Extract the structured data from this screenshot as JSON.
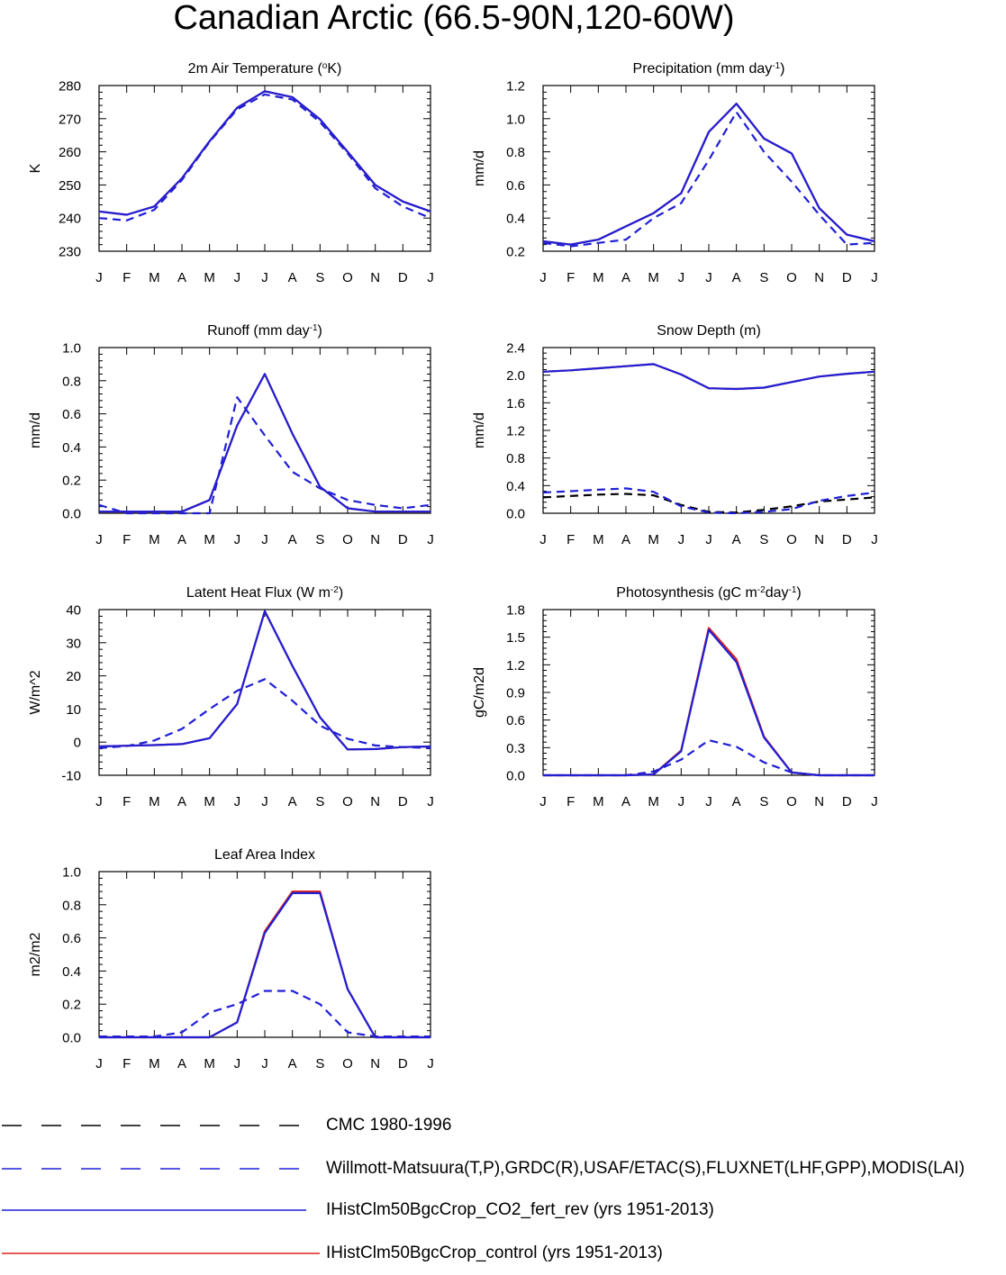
{
  "title": "Canadian Arctic (66.5-90N,120-60W)",
  "colors": {
    "obs_cmc": "#000000",
    "obs_other": "#1f1fd6",
    "co2_fert_rev": "#1f1fd6",
    "control": "#e0241b"
  },
  "legend": [
    {
      "label": "CMC 1980-1996",
      "style": "dashed",
      "color": "#000000"
    },
    {
      "label": "Willmott-Matsuura(T,P),GRDC(R),USAF/ETAC(S),FLUXNET(LHF,GPP),MODIS(LAI)",
      "style": "dashed",
      "color": "#1f1fd6"
    },
    {
      "label": "IHistClm50BgcCrop_CO2_fert_rev (yrs 1951-2013)",
      "style": "solid",
      "color": "#1f1fd6"
    },
    {
      "label": "IHistClm50BgcCrop_control (yrs 1951-2013)",
      "style": "solid",
      "color": "#e0241b"
    }
  ],
  "chart_data": [
    {
      "type": "line",
      "title": "2m Air Temperature (oK)",
      "title_parts": [
        "2m Air Temperature (",
        "o",
        "K)"
      ],
      "title_style": [
        "normal",
        "sup",
        "normal"
      ],
      "ylabel": "K",
      "x": [
        "J",
        "F",
        "M",
        "A",
        "M",
        "J",
        "J",
        "A",
        "S",
        "O",
        "N",
        "D",
        "J"
      ],
      "ylim": [
        230,
        280
      ],
      "yticks": [
        230,
        240,
        250,
        260,
        270,
        280
      ],
      "yticklabels": [
        "230",
        "240",
        "250",
        "260",
        "270",
        "280"
      ],
      "series": [
        {
          "name": "Willmott-Matsuura",
          "color": "#1f1fd6",
          "dashed": true,
          "values": [
            240,
            239.3,
            242.5,
            251.5,
            263,
            272.8,
            277.3,
            275.8,
            269,
            259.5,
            249,
            243.5,
            240
          ]
        },
        {
          "name": "IHistClm50BgcCrop_control",
          "color": "#e0241b",
          "dashed": false,
          "values": [
            242,
            241,
            243.5,
            252,
            263.2,
            273.3,
            278.3,
            276.5,
            269.8,
            260,
            250,
            245,
            242
          ]
        },
        {
          "name": "IHistClm50BgcCrop_CO2_fert_rev",
          "color": "#1f1fd6",
          "dashed": false,
          "values": [
            242,
            241,
            243.5,
            252,
            263.2,
            273.3,
            278.3,
            276.5,
            269.8,
            260,
            250,
            245,
            242
          ]
        }
      ]
    },
    {
      "type": "line",
      "title": "Precipitation (mm day-1)",
      "title_parts": [
        "Precipitation (mm day",
        "-1",
        ")"
      ],
      "title_style": [
        "normal",
        "sup",
        "normal"
      ],
      "ylabel": "mm/d",
      "x": [
        "J",
        "F",
        "M",
        "A",
        "M",
        "J",
        "J",
        "A",
        "S",
        "O",
        "N",
        "D",
        "J"
      ],
      "ylim": [
        0.2,
        1.2
      ],
      "yticks": [
        0.2,
        0.4,
        0.6,
        0.8,
        1.0,
        1.2
      ],
      "yticklabels": [
        "0.2",
        "0.4",
        "0.6",
        "0.8",
        "1.0",
        "1.2"
      ],
      "series": [
        {
          "name": "Willmott-Matsuura",
          "color": "#1f1fd6",
          "dashed": true,
          "values": [
            0.25,
            0.23,
            0.25,
            0.27,
            0.4,
            0.49,
            0.75,
            1.04,
            0.8,
            0.62,
            0.42,
            0.24,
            0.25
          ]
        },
        {
          "name": "IHistClm50BgcCrop_control",
          "color": "#e0241b",
          "dashed": false,
          "values": [
            0.26,
            0.24,
            0.27,
            0.35,
            0.43,
            0.55,
            0.92,
            1.09,
            0.88,
            0.79,
            0.46,
            0.3,
            0.26
          ]
        },
        {
          "name": "IHistClm50BgcCrop_CO2_fert_rev",
          "color": "#1f1fd6",
          "dashed": false,
          "values": [
            0.26,
            0.24,
            0.27,
            0.35,
            0.43,
            0.55,
            0.92,
            1.09,
            0.88,
            0.79,
            0.46,
            0.3,
            0.26
          ]
        }
      ]
    },
    {
      "type": "line",
      "title": "Runoff (mm day-1)",
      "title_parts": [
        "Runoff (mm day",
        "-1",
        ")"
      ],
      "title_style": [
        "normal",
        "sup",
        "normal"
      ],
      "ylabel": "mm/d",
      "x": [
        "J",
        "F",
        "M",
        "A",
        "M",
        "J",
        "J",
        "A",
        "S",
        "O",
        "N",
        "D",
        "J"
      ],
      "ylim": [
        0,
        1.0
      ],
      "yticks": [
        0,
        0.2,
        0.4,
        0.6,
        0.8,
        1.0
      ],
      "yticklabels": [
        "0.0",
        "0.2",
        "0.4",
        "0.6",
        "0.8",
        "1.0"
      ],
      "series": [
        {
          "name": "GRDC",
          "color": "#1f1fd6",
          "dashed": true,
          "values": [
            0.05,
            0.0,
            0.0,
            0.0,
            0.0,
            0.7,
            0.47,
            0.25,
            0.15,
            0.08,
            0.05,
            0.03,
            0.05
          ]
        },
        {
          "name": "IHistClm50BgcCrop_control",
          "color": "#e0241b",
          "dashed": false,
          "values": [
            0.01,
            0.01,
            0.01,
            0.01,
            0.08,
            0.53,
            0.84,
            0.48,
            0.16,
            0.03,
            0.01,
            0.01,
            0.01
          ]
        },
        {
          "name": "IHistClm50BgcCrop_CO2_fert_rev",
          "color": "#1f1fd6",
          "dashed": false,
          "values": [
            0.01,
            0.01,
            0.01,
            0.01,
            0.08,
            0.53,
            0.84,
            0.48,
            0.16,
            0.03,
            0.01,
            0.01,
            0.01
          ]
        }
      ]
    },
    {
      "type": "line",
      "title": "Snow Depth (m)",
      "title_parts": [
        "Snow Depth (m)"
      ],
      "title_style": [
        "normal"
      ],
      "ylabel": "mm/d",
      "x": [
        "J",
        "F",
        "M",
        "A",
        "M",
        "J",
        "J",
        "A",
        "S",
        "O",
        "N",
        "D",
        "J"
      ],
      "ylim": [
        0,
        2.4
      ],
      "yticks": [
        0,
        0.4,
        0.8,
        1.2,
        1.6,
        2.0,
        2.4
      ],
      "yticklabels": [
        "0.0",
        "0.4",
        "0.8",
        "1.2",
        "1.6",
        "2.0",
        "2.4"
      ],
      "series": [
        {
          "name": "CMC 1980-1996",
          "color": "#000000",
          "dashed": true,
          "values": [
            0.23,
            0.25,
            0.27,
            0.28,
            0.26,
            0.12,
            0.02,
            0.01,
            0.05,
            0.1,
            0.17,
            0.2,
            0.23
          ]
        },
        {
          "name": "USAF/ETAC",
          "color": "#1f1fd6",
          "dashed": true,
          "values": [
            0.3,
            0.32,
            0.34,
            0.36,
            0.31,
            0.1,
            0.01,
            0.0,
            0.02,
            0.06,
            0.18,
            0.25,
            0.3
          ]
        },
        {
          "name": "IHistClm50BgcCrop_control",
          "color": "#e0241b",
          "dashed": false,
          "values": [
            2.05,
            2.07,
            2.1,
            2.13,
            2.16,
            2.01,
            1.81,
            1.8,
            1.82,
            1.9,
            1.98,
            2.02,
            2.05
          ]
        },
        {
          "name": "IHistClm50BgcCrop_CO2_fert_rev",
          "color": "#1f1fd6",
          "dashed": false,
          "values": [
            2.05,
            2.07,
            2.1,
            2.13,
            2.16,
            2.01,
            1.81,
            1.8,
            1.82,
            1.9,
            1.98,
            2.02,
            2.05
          ]
        }
      ]
    },
    {
      "type": "line",
      "title": "Latent Heat Flux (W m-2)",
      "title_parts": [
        "Latent Heat Flux (W m",
        "-2",
        ")"
      ],
      "title_style": [
        "normal",
        "sup",
        "normal"
      ],
      "ylabel": "W/m^2",
      "x": [
        "J",
        "F",
        "M",
        "A",
        "M",
        "J",
        "J",
        "A",
        "S",
        "O",
        "N",
        "D",
        "J"
      ],
      "ylim": [
        -10,
        40
      ],
      "yticks": [
        -10,
        0,
        10,
        20,
        30,
        40
      ],
      "yticklabels": [
        "-10",
        "0",
        "10",
        "20",
        "30",
        "40"
      ],
      "series": [
        {
          "name": "FLUXNET",
          "color": "#1f1fd6",
          "dashed": true,
          "values": [
            -1.8,
            -1.2,
            0.5,
            4,
            10,
            15.5,
            19,
            12.5,
            5,
            1,
            -1,
            -1.5,
            -1.8
          ]
        },
        {
          "name": "IHistClm50BgcCrop_control",
          "color": "#e0241b",
          "dashed": false,
          "values": [
            -1.3,
            -1.1,
            -0.9,
            -0.6,
            1.2,
            11.5,
            39.5,
            23,
            7.5,
            -2.2,
            -2.1,
            -1.5,
            -1.3
          ]
        },
        {
          "name": "IHistClm50BgcCrop_CO2_fert_rev",
          "color": "#1f1fd6",
          "dashed": false,
          "values": [
            -1.3,
            -1.1,
            -0.9,
            -0.6,
            1.2,
            11.5,
            39.5,
            23,
            7.5,
            -2.2,
            -2.1,
            -1.5,
            -1.3
          ]
        }
      ]
    },
    {
      "type": "line",
      "title": "Photosynthesis (gC m-2day-1)",
      "title_parts": [
        "Photosynthesis (gC m",
        "-2",
        "day",
        "-1",
        ")"
      ],
      "title_style": [
        "normal",
        "sup",
        "normal",
        "sup",
        "normal"
      ],
      "ylabel": "gC/m2d",
      "x": [
        "J",
        "F",
        "M",
        "A",
        "M",
        "J",
        "J",
        "A",
        "S",
        "O",
        "N",
        "D",
        "J"
      ],
      "ylim": [
        0,
        1.8
      ],
      "yticks": [
        0,
        0.3,
        0.6,
        0.9,
        1.2,
        1.5,
        1.8
      ],
      "yticklabels": [
        "0.0",
        "0.3",
        "0.6",
        "0.9",
        "1.2",
        "1.5",
        "1.8"
      ],
      "series": [
        {
          "name": "FLUXNET",
          "color": "#1f1fd6",
          "dashed": true,
          "values": [
            0,
            0,
            0,
            0,
            0.04,
            0.17,
            0.38,
            0.31,
            0.14,
            0.03,
            0,
            0,
            0
          ]
        },
        {
          "name": "IHistClm50BgcCrop_control",
          "color": "#e0241b",
          "dashed": false,
          "values": [
            0,
            0,
            0,
            0,
            0.01,
            0.27,
            1.6,
            1.26,
            0.42,
            0.03,
            0,
            0,
            0
          ]
        },
        {
          "name": "IHistClm50BgcCrop_CO2_fert_rev",
          "color": "#1f1fd6",
          "dashed": false,
          "values": [
            0,
            0,
            0,
            0,
            0.01,
            0.26,
            1.58,
            1.23,
            0.41,
            0.03,
            0,
            0,
            0
          ]
        }
      ]
    },
    {
      "type": "line",
      "title": "Leaf Area Index",
      "title_parts": [
        "Leaf Area Index"
      ],
      "title_style": [
        "normal"
      ],
      "ylabel": "m2/m2",
      "x": [
        "J",
        "F",
        "M",
        "A",
        "M",
        "J",
        "J",
        "A",
        "S",
        "O",
        "N",
        "D",
        "J"
      ],
      "ylim": [
        0,
        1.0
      ],
      "yticks": [
        0,
        0.2,
        0.4,
        0.6,
        0.8,
        1.0
      ],
      "yticklabels": [
        "0.0",
        "0.2",
        "0.4",
        "0.6",
        "0.8",
        "1.0"
      ],
      "series": [
        {
          "name": "MODIS",
          "color": "#1f1fd6",
          "dashed": true,
          "values": [
            0.005,
            0.005,
            0.005,
            0.03,
            0.15,
            0.2,
            0.28,
            0.28,
            0.2,
            0.03,
            0.005,
            0.005,
            0.005
          ]
        },
        {
          "name": "IHistClm50BgcCrop_control",
          "color": "#e0241b",
          "dashed": false,
          "values": [
            0,
            0,
            0,
            0,
            0,
            0.09,
            0.64,
            0.88,
            0.88,
            0.29,
            0,
            0,
            0
          ]
        },
        {
          "name": "IHistClm50BgcCrop_CO2_fert_rev",
          "color": "#1f1fd6",
          "dashed": false,
          "values": [
            0,
            0,
            0,
            0,
            0,
            0.09,
            0.63,
            0.87,
            0.87,
            0.29,
            0,
            0,
            0
          ]
        }
      ]
    }
  ]
}
